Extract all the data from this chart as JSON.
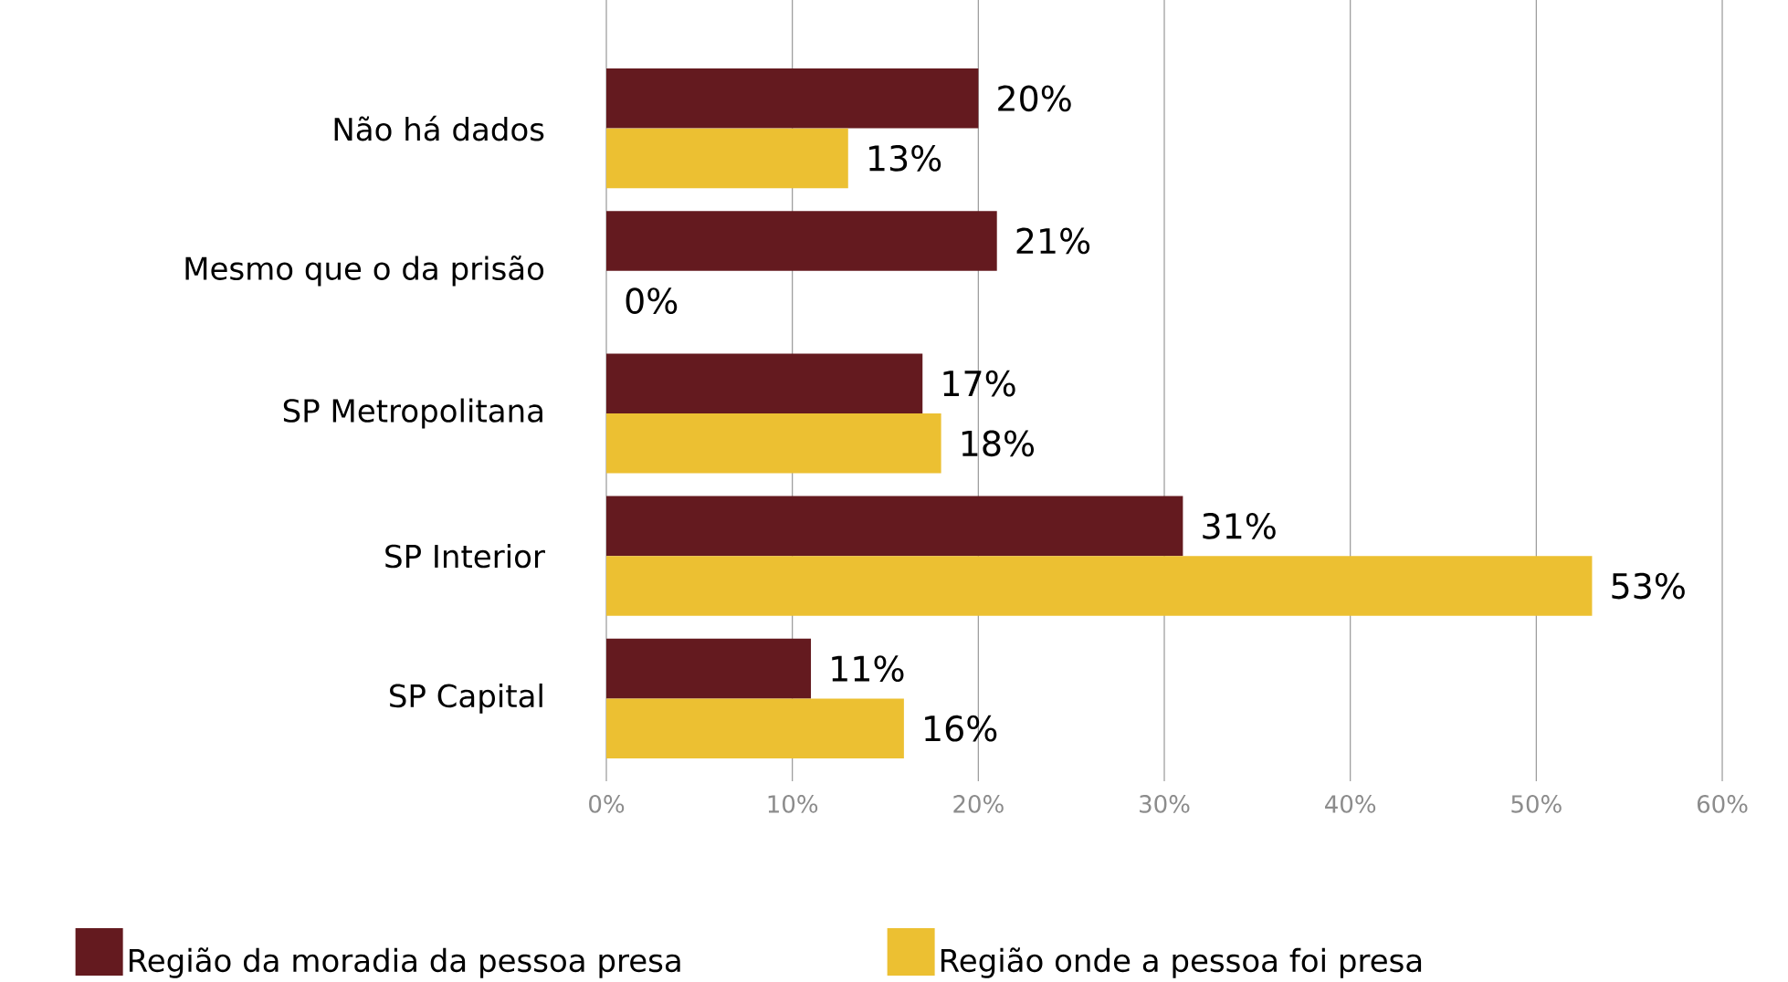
{
  "chart_data": {
    "type": "bar",
    "orientation": "horizontal",
    "categories": [
      "Não há dados",
      "Mesmo que o da prisão",
      "SP Metropolitana",
      "SP Interior",
      "SP Capital"
    ],
    "series": [
      {
        "name": "Região da moradia da pessoa presa",
        "color": "#641a1f",
        "values": [
          20,
          21,
          17,
          31,
          11
        ],
        "value_labels": [
          "20%",
          "21%",
          "17%",
          "31%",
          "11%"
        ]
      },
      {
        "name": "Região onde a pessoa foi presa",
        "color": "#ecc032",
        "values": [
          13,
          0,
          18,
          53,
          16
        ],
        "value_labels": [
          "13%",
          "0%",
          "18%",
          "53%",
          "16%"
        ]
      }
    ],
    "xlim": [
      0,
      60
    ],
    "xticks": [
      {
        "value": 0,
        "label": "0%"
      },
      {
        "value": 10,
        "label": "10%"
      },
      {
        "value": 20,
        "label": "20%"
      },
      {
        "value": 30,
        "label": "30%"
      },
      {
        "value": 40,
        "label": "40%"
      },
      {
        "value": 50,
        "label": "50%"
      },
      {
        "value": 60,
        "label": "60%"
      }
    ],
    "grid": "x",
    "legend": "bottom"
  }
}
